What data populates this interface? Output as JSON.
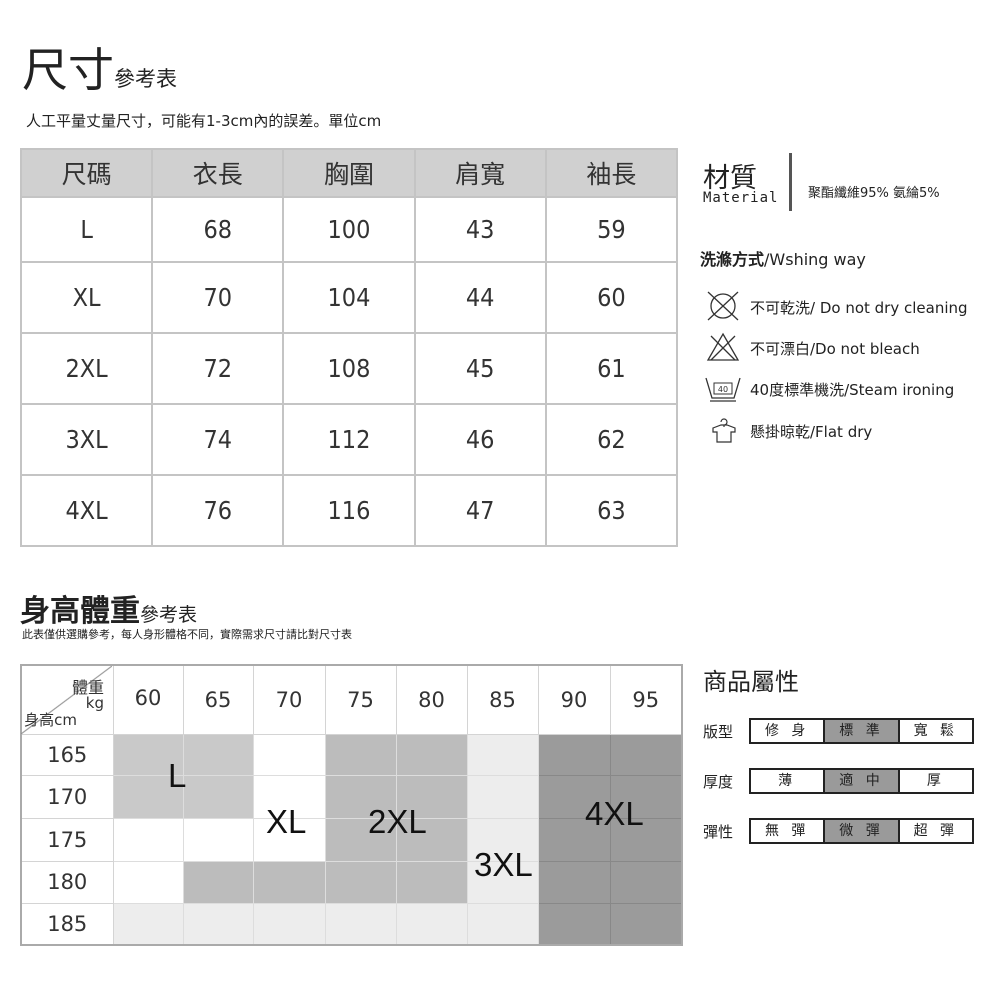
{
  "size_chart": {
    "title": "尺寸",
    "title_suffix": "參考表",
    "subtitle": "人工平量丈量尺寸，可能有1-3cm內的誤差。單位cm",
    "headers": [
      "尺碼",
      "衣長",
      "胸圍",
      "肩寬",
      "袖長"
    ],
    "rows": [
      [
        "L",
        "68",
        "100",
        "43",
        "59"
      ],
      [
        "XL",
        "70",
        "104",
        "44",
        "60"
      ],
      [
        "2XL",
        "72",
        "108",
        "45",
        "61"
      ],
      [
        "3XL",
        "74",
        "112",
        "46",
        "62"
      ],
      [
        "4XL",
        "76",
        "116",
        "47",
        "63"
      ]
    ]
  },
  "hw_chart": {
    "title": "身高體重",
    "title_suffix": "參考表",
    "subtitle": "此表僅供選購參考，每人身形體格不同，實際需求尺寸請比對尺寸表",
    "corner_weight": "體重",
    "corner_kg": "kg",
    "corner_height": "身高cm",
    "weights": [
      "60",
      "65",
      "70",
      "75",
      "80",
      "85",
      "90",
      "95"
    ],
    "heights": [
      "165",
      "170",
      "175",
      "180",
      "185"
    ],
    "cells": [
      [
        "L",
        "L",
        "XL",
        "2XL",
        "2XL",
        "3XL",
        "4XL",
        "4XL"
      ],
      [
        "L",
        "L",
        "XL",
        "2XL",
        "2XL",
        "3XL",
        "4XL",
        "4XL"
      ],
      [
        "XL",
        "XL",
        "XL",
        "2XL",
        "2XL",
        "3XL",
        "4XL",
        "4XL"
      ],
      [
        "XL",
        "2XL",
        "2XL",
        "2XL",
        "2XL",
        "3XL",
        "4XL",
        "4XL"
      ],
      [
        "3XL",
        "3XL",
        "3XL",
        "3XL",
        "3XL",
        "3XL",
        "4XL",
        "4XL"
      ]
    ],
    "size_colors": {
      "L": "#c9c9c9",
      "XL": "#ffffff",
      "2XL": "#bcbcbc",
      "3XL": "#ededed",
      "4XL": "#9b9b9b"
    },
    "labels": {
      "L": "L",
      "XL": "XL",
      "2XL": "2XL",
      "3XL": "3XL",
      "4XL": "4XL"
    }
  },
  "material": {
    "title": "材質",
    "title_en": "Material",
    "value": "聚酯纖維95% 氨綸5%"
  },
  "washing": {
    "title": "洗滌方式",
    "title_en": "/Wshing way",
    "items": [
      {
        "icon": "no-dry-clean-icon",
        "text": "不可乾洗/ Do not dry cleaning"
      },
      {
        "icon": "no-bleach-icon",
        "text": "不可漂白/Do not bleach"
      },
      {
        "icon": "wash-40-icon",
        "icon_text": "40",
        "text": "40度標準機洗/Steam ironing"
      },
      {
        "icon": "hang-dry-icon",
        "text": "懸掛晾乾/Flat dry"
      }
    ]
  },
  "attributes": {
    "title": "商品屬性",
    "rows": [
      {
        "label": "版型",
        "options": [
          "修 身",
          "標 準",
          "寬 鬆"
        ],
        "selected": 1
      },
      {
        "label": "厚度",
        "options": [
          "薄",
          "適 中",
          "厚"
        ],
        "selected": 1
      },
      {
        "label": "彈性",
        "options": [
          "無 彈",
          "微 彈",
          "超 彈"
        ],
        "selected": 1
      }
    ]
  }
}
